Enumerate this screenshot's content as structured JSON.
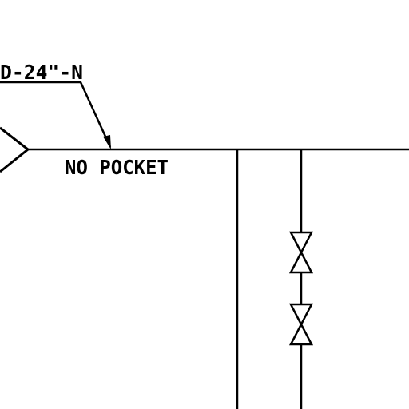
{
  "diagram": {
    "line_tag": "D-24\"-N",
    "note": "NO POCKET",
    "colors": {
      "background": "#ffffff",
      "ink": "#000000"
    },
    "symbols": [
      "offpage-connector",
      "gate-valve",
      "gate-valve"
    ]
  }
}
